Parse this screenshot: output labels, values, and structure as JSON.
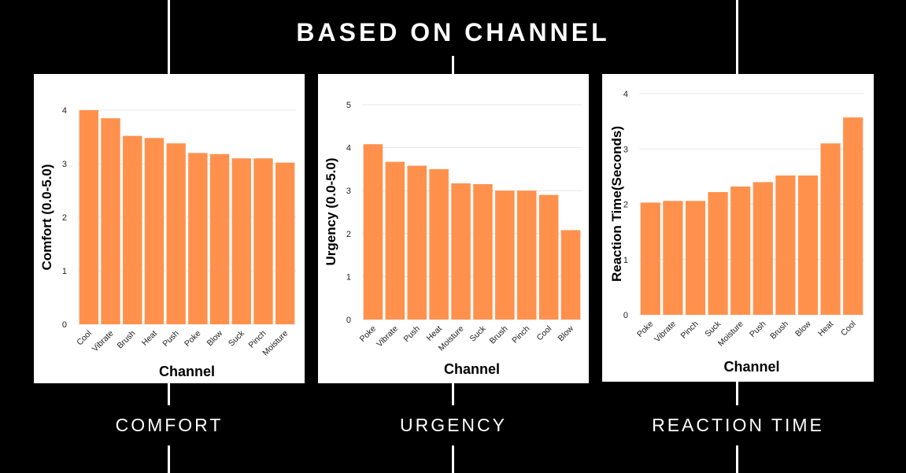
{
  "page": {
    "title": "BASED ON CHANNEL",
    "bar_color": "#FF914D",
    "grid_color": "#E8E8E8",
    "background": "#000000"
  },
  "sections": [
    {
      "label": "COMFORT"
    },
    {
      "label": "URGENCY"
    },
    {
      "label": "REACTION TIME"
    }
  ],
  "chart_data": [
    {
      "type": "bar",
      "xlabel": "Channel",
      "ylabel": "Comfort (0.0-5.0)",
      "ylim": [
        0,
        4
      ],
      "yticks": [
        0,
        1,
        2,
        3,
        4
      ],
      "grid": true,
      "categories": [
        "Cool",
        "Vibrate",
        "Brush",
        "Heat",
        "Push",
        "Poke",
        "Blow",
        "Suck",
        "Pinch",
        "Moisture"
      ],
      "values": [
        4.0,
        3.85,
        3.52,
        3.48,
        3.38,
        3.2,
        3.18,
        3.1,
        3.1,
        3.02
      ]
    },
    {
      "type": "bar",
      "xlabel": "Channel",
      "ylabel": "Urgency (0.0-5.0)",
      "ylim": [
        0,
        5
      ],
      "yticks": [
        0,
        1,
        2,
        3,
        4,
        5
      ],
      "grid": true,
      "categories": [
        "Poke",
        "Vibrate",
        "Push",
        "Heat",
        "Moisture",
        "Suck",
        "Brush",
        "Pinch",
        "Cool",
        "Blow"
      ],
      "values": [
        4.08,
        3.67,
        3.58,
        3.5,
        3.17,
        3.15,
        3.0,
        3.0,
        2.9,
        2.08
      ]
    },
    {
      "type": "bar",
      "xlabel": "Channel",
      "ylabel": "Reaction Time(Seconds)",
      "ylim": [
        0,
        4
      ],
      "yticks": [
        0,
        1,
        2,
        3,
        4
      ],
      "grid": true,
      "categories": [
        "Poke",
        "Vibrate",
        "Pinch",
        "Suck",
        "Moisture",
        "Push",
        "Brush",
        "Blow",
        "Heat",
        "Cool"
      ],
      "values": [
        2.03,
        2.06,
        2.06,
        2.22,
        2.32,
        2.4,
        2.52,
        2.52,
        3.1,
        3.57
      ]
    }
  ]
}
